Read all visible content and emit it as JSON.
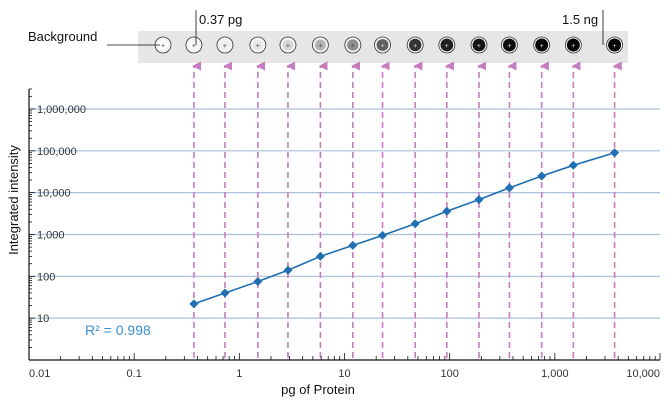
{
  "chart_data": {
    "type": "scatter",
    "xlabel": "pg of Protein",
    "ylabel": "Integrated intensity",
    "x_scale": "log",
    "y_scale": "log",
    "xlim": [
      0.01,
      10000
    ],
    "ylim": [
      1,
      3000000
    ],
    "x_ticks": [
      {
        "value": 0.01,
        "label": "0.01"
      },
      {
        "value": 0.1,
        "label": "0.1"
      },
      {
        "value": 1,
        "label": "1"
      },
      {
        "value": 10,
        "label": "10"
      },
      {
        "value": 100,
        "label": "100"
      },
      {
        "value": 1000,
        "label": "1,000"
      },
      {
        "value": 10000,
        "label": "10,000"
      }
    ],
    "y_ticks": [
      {
        "value": 10,
        "label": "10"
      },
      {
        "value": 100,
        "label": "100"
      },
      {
        "value": 1000,
        "label": "1,000"
      },
      {
        "value": 10000,
        "label": "10,000"
      },
      {
        "value": 100000,
        "label": "100,000"
      },
      {
        "value": 1000000,
        "label": "1,000,000"
      }
    ],
    "grid": "horizontal",
    "series": [
      {
        "x": [
          0.37,
          0.73,
          1.5,
          2.9,
          5.9,
          12,
          23,
          47,
          94,
          190,
          370,
          750,
          1500,
          3700
        ],
        "y": [
          22,
          40,
          75,
          140,
          300,
          550,
          950,
          1800,
          3600,
          6800,
          13000,
          25000,
          45000,
          90000
        ]
      }
    ],
    "annotation": "R² = 0.998",
    "blot": {
      "label_left": "Background",
      "label_start": "0.37 pg",
      "label_end": "1.5 ng",
      "spot_intensity": [
        0.02,
        0.06,
        0.1,
        0.16,
        0.3,
        0.45,
        0.62,
        0.8,
        0.88,
        0.92,
        0.95,
        0.97,
        0.98,
        0.99
      ]
    },
    "colors": {
      "series": "#1f6fb2",
      "arrows": "#c77cc0",
      "grid": "#a9bfdc",
      "annotation": "#3a8fd0",
      "blot_strip": "#e6e6e6"
    }
  }
}
